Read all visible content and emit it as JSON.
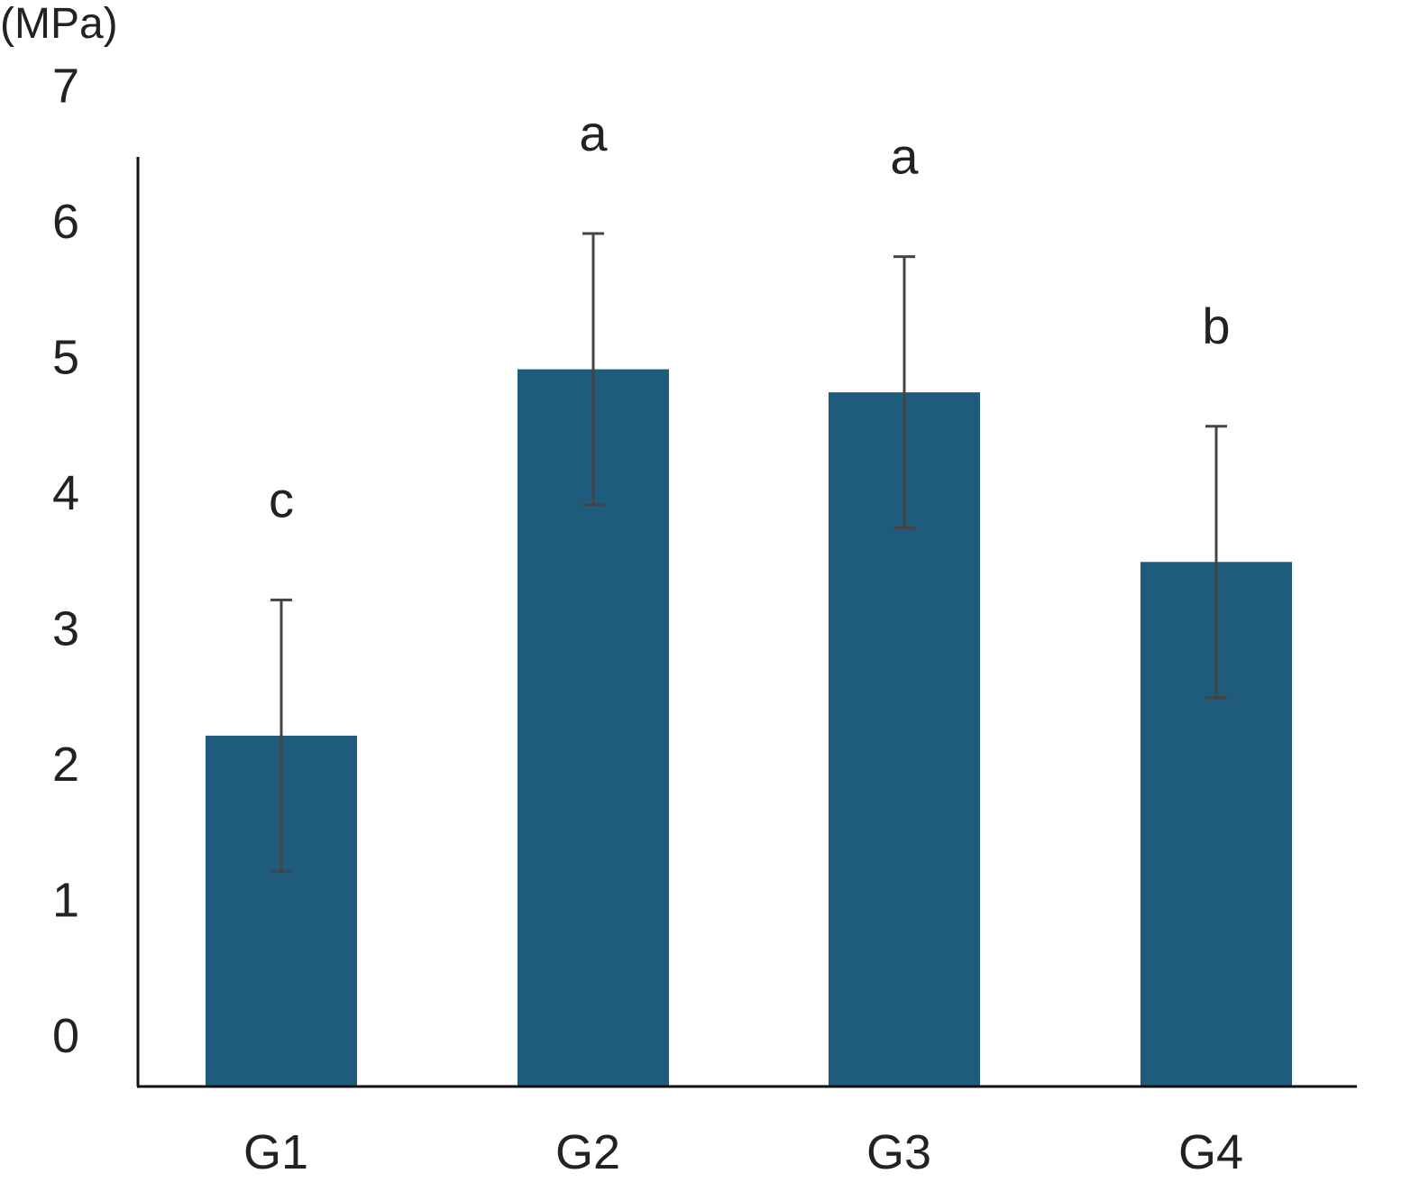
{
  "chart_data": {
    "type": "bar",
    "unit_label": "(MPa)",
    "categories": [
      "G1",
      "G2",
      "G3",
      "G4"
    ],
    "values": [
      2.2,
      4.9,
      4.73,
      3.48
    ],
    "error": [
      1.0,
      1.0,
      1.0,
      1.0
    ],
    "significance": [
      "c",
      "a",
      "a",
      "b"
    ],
    "yticks": [
      "0",
      "1",
      "2",
      "3",
      "4",
      "5",
      "6",
      "7"
    ],
    "ylim": [
      0,
      7
    ],
    "grid": false,
    "colors": {
      "bar": "#1f5b7d",
      "error": "#444444",
      "axis": "#111111"
    }
  }
}
